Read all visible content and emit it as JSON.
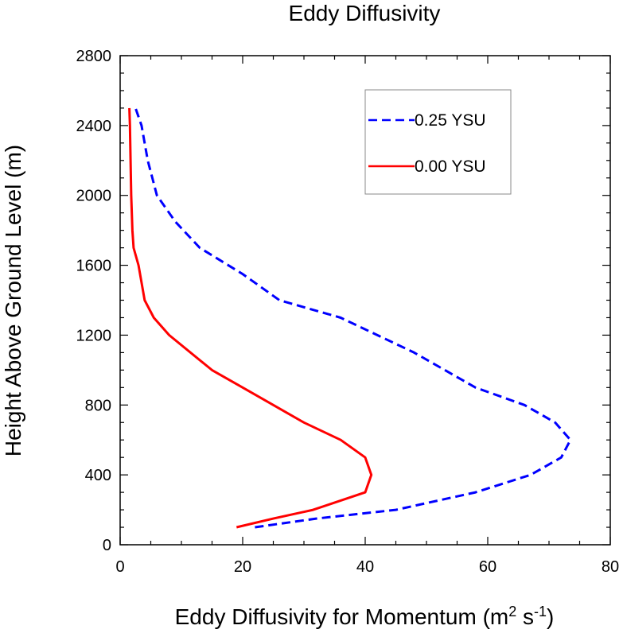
{
  "chart_data": {
    "type": "line",
    "title": "Eddy Diffusivity",
    "xlabel_main": "Eddy Diffusivity for Momentum (m",
    "xlabel_sup1": "2",
    "xlabel_mid": " s",
    "xlabel_sup2": "-1",
    "xlabel_end": ")",
    "ylabel": "Height Above Ground Level (m)",
    "xlim": [
      0,
      80
    ],
    "ylim": [
      0,
      2800
    ],
    "xticks": [
      0,
      20,
      40,
      60,
      80
    ],
    "yticks": [
      0,
      400,
      800,
      1200,
      1600,
      2000,
      2400,
      2800
    ],
    "grid": false,
    "legend_position": "top-right",
    "series": [
      {
        "name": "0.25 YSU",
        "color": "#0000ff",
        "style": "dashed",
        "x": [
          22,
          32,
          45,
          58,
          67,
          72,
          73.5,
          71,
          66,
          58,
          48,
          36,
          26,
          20,
          13,
          9,
          6,
          4.5,
          3.5,
          3,
          2.5
        ],
        "y": [
          100,
          150,
          200,
          300,
          400,
          500,
          600,
          700,
          800,
          900,
          1100,
          1300,
          1400,
          1550,
          1700,
          1850,
          2000,
          2200,
          2400,
          2450,
          2500
        ]
      },
      {
        "name": "0.00 YSU",
        "color": "#ff0000",
        "style": "solid",
        "x": [
          19,
          25,
          31.5,
          40,
          41,
          40,
          36,
          30,
          25,
          20,
          15,
          8,
          5.5,
          4,
          3,
          2.2,
          2,
          1.8,
          1.7,
          1.6,
          1.5
        ],
        "y": [
          100,
          150,
          200,
          300,
          400,
          500,
          600,
          700,
          800,
          900,
          1000,
          1200,
          1300,
          1400,
          1600,
          1700,
          1800,
          2000,
          2200,
          2400,
          2500
        ]
      }
    ]
  }
}
